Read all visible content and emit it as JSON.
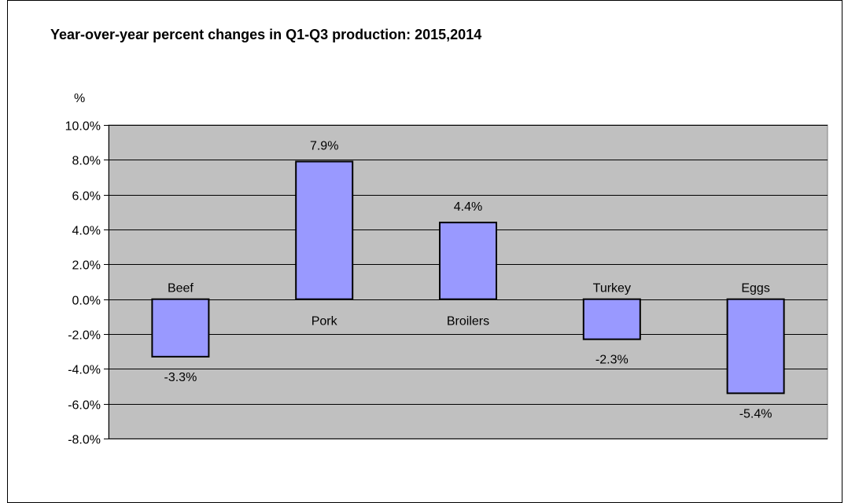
{
  "chart_data": {
    "type": "bar",
    "title": "Year-over-year percent changes in Q1-Q3 production:  2015,2014",
    "ylabel": "%",
    "xlabel": "",
    "categories": [
      "Beef",
      "Pork",
      "Broilers",
      "Turkey",
      "Eggs"
    ],
    "values": [
      -3.3,
      7.9,
      4.4,
      -2.3,
      -5.4
    ],
    "value_labels": [
      "-3.3%",
      "7.9%",
      "4.4%",
      "-2.3%",
      "-5.4%"
    ],
    "ylim": [
      -8.0,
      10.0
    ],
    "ytick_labels": [
      "10.0%",
      "8.0%",
      "6.0%",
      "4.0%",
      "2.0%",
      "0.0%",
      "-2.0%",
      "-4.0%",
      "-6.0%",
      "-8.0%"
    ],
    "grid": true,
    "legend": "none",
    "colors": {
      "bar_fill": "#9999ff",
      "bar_stroke": "#000000",
      "plot_background": "#c0c0c0",
      "gridline": "#000000"
    }
  }
}
